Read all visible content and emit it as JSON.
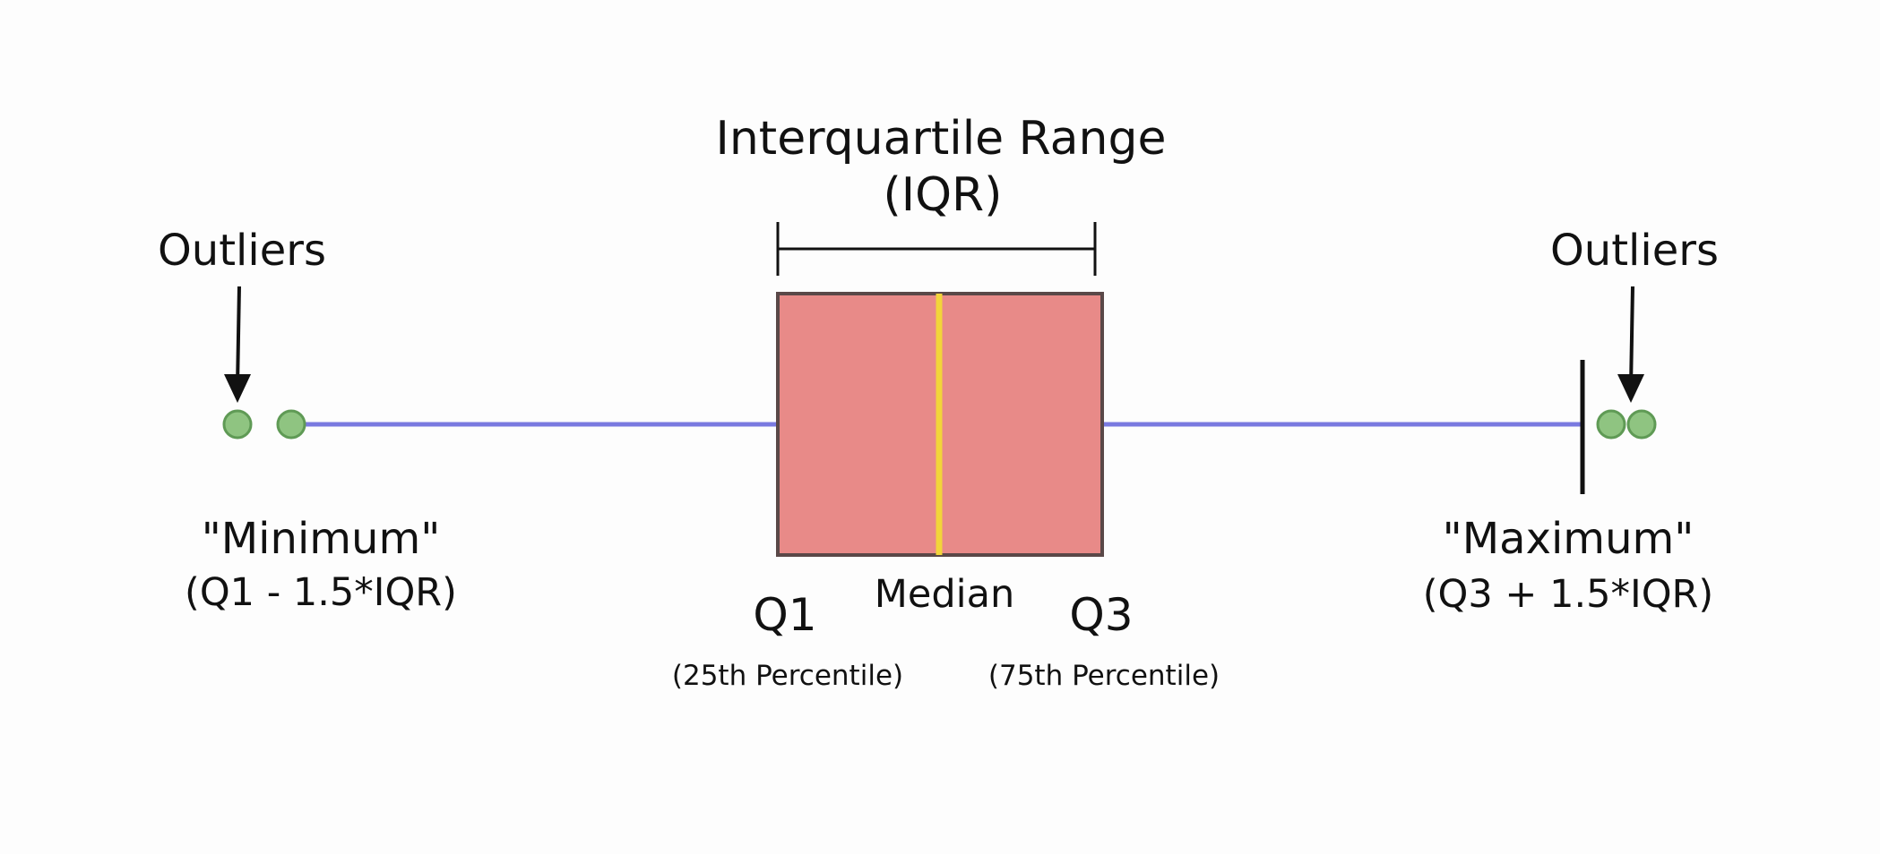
{
  "iqr_title": "Interquartile Range",
  "iqr_abbrev": "(IQR)",
  "outliers_left_label": "Outliers",
  "outliers_right_label": "Outliers",
  "minimum_label": "\"Minimum\"",
  "minimum_formula": "(Q1 - 1.5*IQR)",
  "maximum_label": "\"Maximum\"",
  "maximum_formula": "(Q3 + 1.5*IQR)",
  "median_label": "Median",
  "q1_label": "Q1",
  "q1_sub": "(25th Percentile)",
  "q3_label": "Q3",
  "q3_sub": "(75th Percentile)",
  "colors": {
    "box_fill": "#e88a88",
    "box_stroke": "#5a4848",
    "median_line": "#f2d43a",
    "whisker": "#7a7ae0",
    "outlier_fill": "#8fc481",
    "outlier_stroke": "#5f9a55",
    "ink": "#111111"
  }
}
